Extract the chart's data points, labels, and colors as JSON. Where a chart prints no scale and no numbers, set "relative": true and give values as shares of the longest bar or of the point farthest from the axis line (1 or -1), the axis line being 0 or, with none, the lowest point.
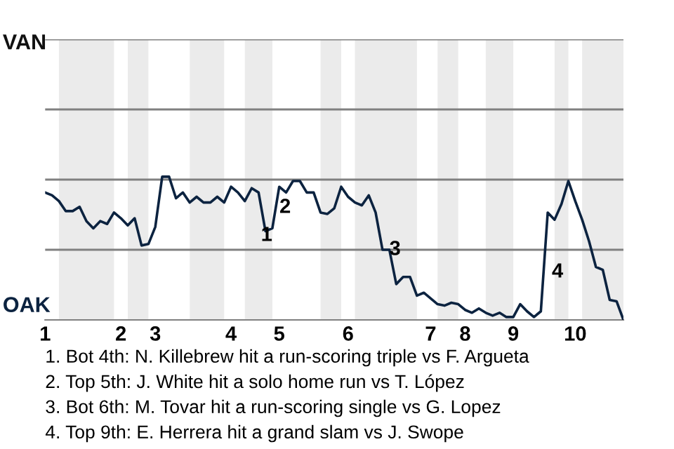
{
  "chart_data": {
    "type": "line",
    "relative": true,
    "categories": [
      "1",
      null,
      null,
      null,
      null,
      null,
      null,
      null,
      null,
      null,
      null,
      "2",
      null,
      null,
      null,
      null,
      "3",
      null,
      null,
      null,
      null,
      null,
      null,
      null,
      null,
      null,
      null,
      "4",
      null,
      null,
      null,
      null,
      null,
      null,
      "5",
      null,
      null,
      null,
      null,
      null,
      null,
      null,
      null,
      null,
      "6",
      null,
      null,
      null,
      null,
      null,
      null,
      null,
      null,
      null,
      null,
      null,
      "7",
      null,
      null,
      null,
      null,
      "8",
      null,
      null,
      null,
      null,
      null,
      null,
      "9",
      null,
      null,
      null,
      null,
      null,
      null,
      null,
      null,
      "10",
      null,
      null,
      null,
      null,
      null,
      null,
      null
    ],
    "series": [
      {
        "color": "#0c2340",
        "values": [
          0.89,
          0.87,
          0.83,
          0.76,
          0.76,
          0.79,
          0.69,
          0.64,
          0.69,
          0.67,
          0.75,
          0.71,
          0.66,
          0.71,
          0.52,
          0.53,
          0.65,
          1,
          1,
          0.85,
          0.89,
          0.82,
          0.86,
          0.82,
          0.82,
          0.86,
          0.82,
          0.93,
          0.89,
          0.83,
          0.92,
          0.89,
          0.62,
          0.64,
          0.93,
          0.89,
          0.97,
          0.97,
          0.89,
          0.89,
          0.75,
          0.74,
          0.78,
          0.93,
          0.86,
          0.82,
          0.8,
          0.87,
          0.75,
          0.49,
          0.49,
          0.25,
          0.3,
          0.3,
          0.17,
          0.19,
          0.15,
          0.11,
          0.1,
          0.12,
          0.11,
          0.07,
          0.05,
          0.08,
          0.05,
          0.03,
          0.05,
          0.02,
          0.02,
          0.11,
          0.06,
          0.02,
          0.06,
          0.75,
          0.7,
          0.81,
          0.97,
          0.83,
          0.7,
          0.55,
          0.37,
          0.35,
          0.14,
          0.13,
          0
        ]
      }
    ],
    "marker": "none",
    "line_style": "solid",
    "ref_lines": [
      {
        "axis": "y",
        "value": 0.49,
        "color": "#808080"
      },
      {
        "axis": "y",
        "value": 0.98,
        "color": "#808080"
      },
      {
        "axis": "y",
        "value": 1.47,
        "color": "#808080"
      },
      {
        "axis": "y",
        "value": 1.96,
        "color": "#808080"
      }
    ],
    "annotations": [
      "VAN",
      "OAK",
      "1",
      "2",
      "3",
      "4",
      "1. Bot 4th: N. Killebrew hit a run-scoring triple vs F. Argueta",
      "2. Top 5th: J. White hit a solo home run vs T. López",
      "3. Bot 6th: M. Tovar hit a run-scoring single vs G. Lopez",
      "4. Top 9th: E. Herrera hit a grand slam vs J. Swope"
    ]
  }
}
